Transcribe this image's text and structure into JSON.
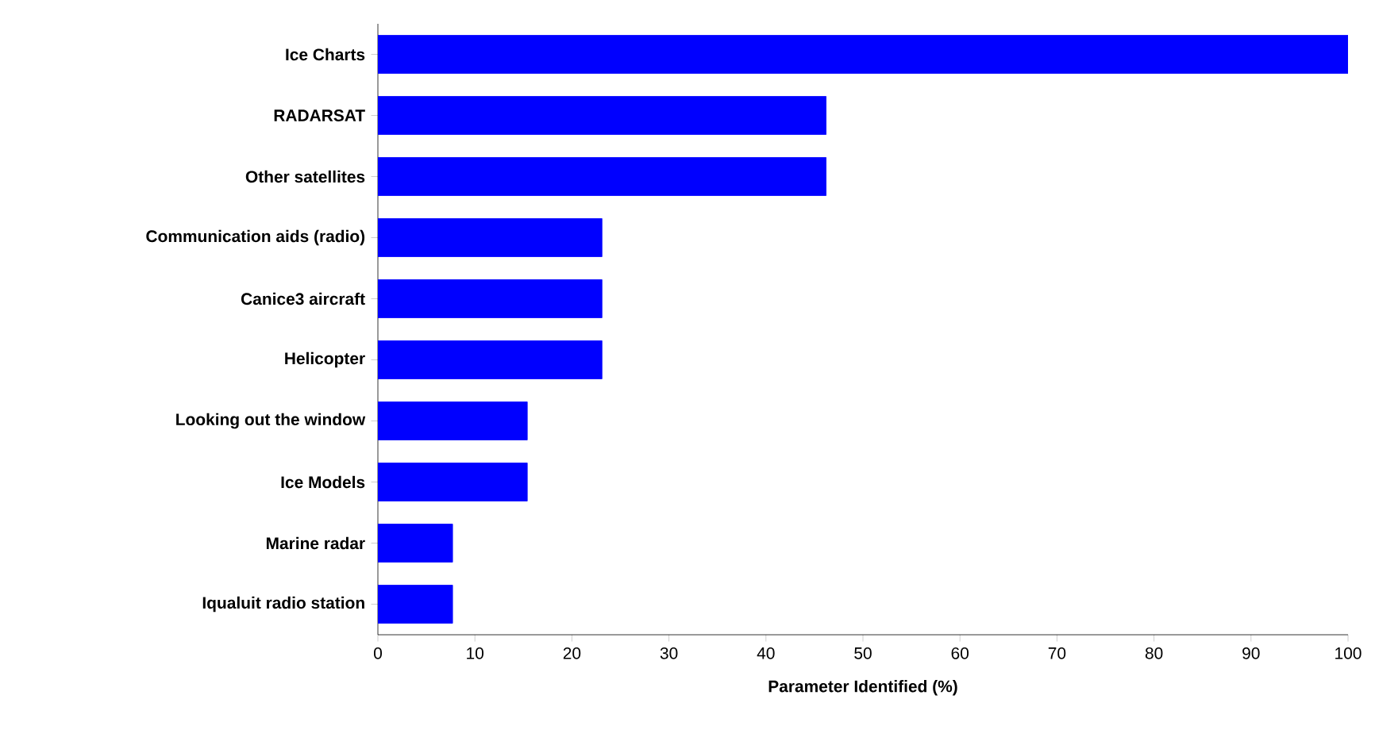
{
  "chart_data": {
    "type": "bar",
    "orientation": "horizontal",
    "xlabel": "Parameter Identified (%)",
    "categories": [
      "Ice Charts",
      "RADARSAT",
      "Other satellites",
      "Communication aids (radio)",
      "Canice3 aircraft",
      "Helicopter",
      "Looking out the window",
      "Ice Models",
      "Marine radar",
      "Iqualuit radio station"
    ],
    "values": [
      100,
      46.2,
      46.2,
      23.1,
      23.1,
      23.1,
      15.4,
      15.4,
      7.7,
      7.7
    ],
    "color": "#0000ff",
    "xlim": [
      0,
      100
    ],
    "xticks": [
      0,
      10,
      20,
      30,
      40,
      50,
      60,
      70,
      80,
      90,
      100
    ]
  }
}
